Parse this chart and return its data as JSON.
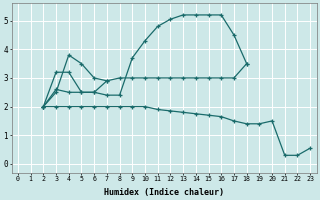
{
  "background_color": "#cde8e8",
  "grid_color": "#ffffff",
  "line_color": "#1a6b6b",
  "xlabel": "Humidex (Indice chaleur)",
  "xlim": [
    -0.5,
    23.5
  ],
  "ylim": [
    -0.3,
    5.6
  ],
  "xticks": [
    0,
    1,
    2,
    3,
    4,
    5,
    6,
    7,
    8,
    9,
    10,
    11,
    12,
    13,
    14,
    15,
    16,
    17,
    18,
    19,
    20,
    21,
    22,
    23
  ],
  "yticks": [
    0,
    1,
    2,
    3,
    4,
    5
  ],
  "series": [
    {
      "x": [
        2,
        3,
        4,
        5,
        6,
        7,
        8,
        9,
        10,
        11,
        12,
        13,
        14,
        15,
        16,
        17,
        18
      ],
      "y": [
        2.0,
        2.6,
        2.5,
        2.5,
        2.5,
        2.4,
        2.4,
        3.7,
        4.3,
        4.8,
        5.05,
        5.2,
        5.2,
        5.2,
        5.2,
        4.5,
        3.5
      ]
    },
    {
      "x": [
        2,
        3,
        4,
        5,
        6,
        7,
        8,
        9,
        10,
        11,
        12,
        13,
        14,
        15,
        16,
        17,
        18
      ],
      "y": [
        2.0,
        2.5,
        3.8,
        3.5,
        3.0,
        2.9,
        3.0,
        3.0,
        3.0,
        3.0,
        3.0,
        3.0,
        3.0,
        3.0,
        3.0,
        3.0,
        3.5
      ]
    },
    {
      "x": [
        2,
        3,
        4,
        5,
        6,
        7
      ],
      "y": [
        2.0,
        3.2,
        3.2,
        2.5,
        2.5,
        2.9
      ]
    },
    {
      "x": [
        2,
        3,
        4,
        5,
        6,
        7,
        8,
        9,
        10,
        11,
        12,
        13,
        14,
        15,
        16,
        17,
        18,
        19,
        20,
        21,
        22,
        23
      ],
      "y": [
        2.0,
        2.0,
        2.0,
        2.0,
        2.0,
        2.0,
        2.0,
        2.0,
        2.0,
        1.9,
        1.85,
        1.8,
        1.75,
        1.7,
        1.65,
        1.5,
        1.4,
        1.4,
        1.5,
        0.3,
        0.3,
        0.55
      ]
    }
  ]
}
